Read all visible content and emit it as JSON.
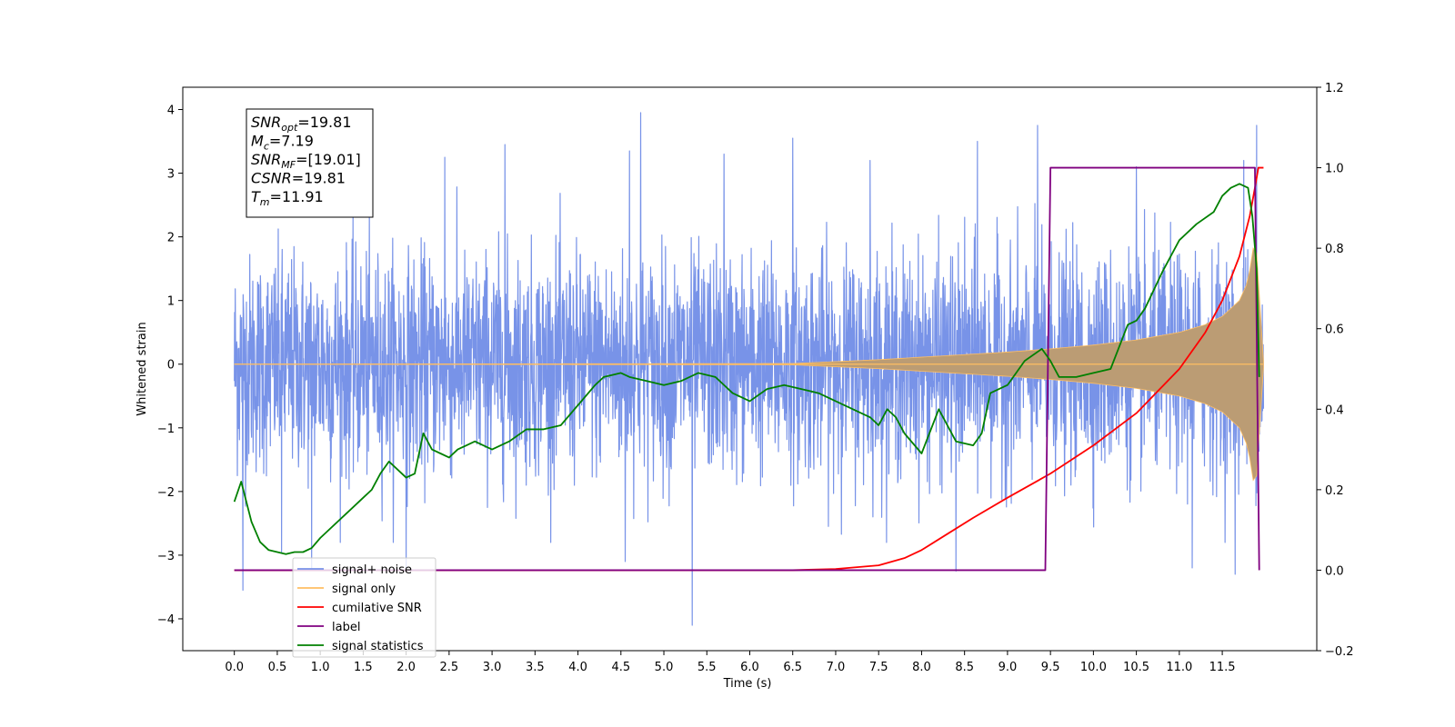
{
  "chart_data": {
    "type": "line",
    "title": "",
    "xlabel": "Time (s)",
    "ylabel": "Whitened strain",
    "xlim": [
      -0.6,
      12.6
    ],
    "ylim": [
      -4.5,
      4.35
    ],
    "y2lim": [
      -0.2,
      1.2
    ],
    "xticks": [
      0.0,
      0.5,
      1.0,
      1.5,
      2.0,
      2.5,
      3.0,
      3.5,
      4.0,
      4.5,
      5.0,
      5.5,
      6.0,
      6.5,
      7.0,
      7.5,
      8.0,
      8.5,
      9.0,
      9.5,
      10.0,
      10.5,
      11.0,
      11.5
    ],
    "xtick_labels": [
      "0.0",
      "0.5",
      "1.0",
      "1.5",
      "2.0",
      "2.5",
      "3.0",
      "3.5",
      "4.0",
      "4.5",
      "5.0",
      "5.5",
      "6.0",
      "6.5",
      "7.0",
      "7.5",
      "8.0",
      "8.5",
      "9.0",
      "9.5",
      "10.0",
      "10.5",
      "11.0",
      "11.5"
    ],
    "yticks": [
      -4,
      -3,
      -2,
      -1,
      0,
      1,
      2,
      3,
      4
    ],
    "ytick_labels": [
      "−4",
      "−3",
      "−2",
      "−1",
      "0",
      "1",
      "2",
      "3",
      "4"
    ],
    "y2ticks": [
      -0.2,
      0.0,
      0.2,
      0.4,
      0.6,
      0.8,
      1.0,
      1.2
    ],
    "y2tick_labels": [
      "−0.2",
      "0.0",
      "0.2",
      "0.4",
      "0.6",
      "0.8",
      "1.0",
      "1.2"
    ],
    "grid": false,
    "legend_position": "lower-left",
    "info_box": {
      "lines": [
        {
          "base": "SNR",
          "sub": "opt",
          "value": "=19.81"
        },
        {
          "base": "M",
          "sub": "c",
          "value": "=7.19"
        },
        {
          "base": "SNR",
          "sub": "MF",
          "value": "=[19.01]"
        },
        {
          "base": "CSNR",
          "sub": "",
          "value": "=19.81"
        },
        {
          "base": "T",
          "sub": "m",
          "value": "=11.91"
        }
      ]
    },
    "series": [
      {
        "name": "signal+ noise",
        "axis": "left",
        "color": "#7893e8",
        "kind": "noise",
        "x_range": [
          0.0,
          11.98
        ],
        "noise_std": 0.85,
        "spikes": [
          {
            "x": 0.1,
            "y": -3.55
          },
          {
            "x": 0.55,
            "y": -2.95
          },
          {
            "x": 0.9,
            "y": -3.2
          },
          {
            "x": 2.0,
            "y": -3.2
          },
          {
            "x": 2.45,
            "y": 3.25
          },
          {
            "x": 3.15,
            "y": 3.45
          },
          {
            "x": 4.6,
            "y": 3.35
          },
          {
            "x": 4.73,
            "y": 3.95
          },
          {
            "x": 4.55,
            "y": -3.1
          },
          {
            "x": 5.33,
            "y": -4.1
          },
          {
            "x": 5.7,
            "y": 3.3
          },
          {
            "x": 6.5,
            "y": 3.55
          },
          {
            "x": 7.4,
            "y": 3.2
          },
          {
            "x": 8.4,
            "y": -3.25
          },
          {
            "x": 8.65,
            "y": 3.5
          },
          {
            "x": 9.35,
            "y": 3.75
          },
          {
            "x": 10.5,
            "y": 3.1
          },
          {
            "x": 11.15,
            "y": -3.2
          },
          {
            "x": 11.65,
            "y": -3.3
          },
          {
            "x": 11.75,
            "y": 3.2
          },
          {
            "x": 11.9,
            "y": 3.75
          }
        ]
      },
      {
        "name": "signal only",
        "axis": "left",
        "color": "#ffbe62",
        "fill_color": "#bb9c74",
        "kind": "chirp_envelope",
        "x": [
          0.0,
          6.5,
          7.0,
          7.5,
          8.0,
          8.5,
          9.0,
          9.5,
          10.0,
          10.5,
          11.0,
          11.3,
          11.5,
          11.7,
          11.8,
          11.88,
          11.92,
          11.95,
          11.98
        ],
        "amplitude": [
          0.0,
          0.01,
          0.04,
          0.07,
          0.11,
          0.15,
          0.19,
          0.24,
          0.3,
          0.38,
          0.5,
          0.62,
          0.75,
          1.0,
          1.3,
          2.0,
          1.5,
          0.6,
          0.05
        ]
      },
      {
        "name": "cumilative SNR",
        "axis": "right",
        "color": "#ff0000",
        "x": [
          0.0,
          6.5,
          7.0,
          7.5,
          7.8,
          8.0,
          8.3,
          8.6,
          9.0,
          9.5,
          10.0,
          10.5,
          11.0,
          11.3,
          11.5,
          11.7,
          11.82,
          11.88,
          11.92,
          11.98
        ],
        "values": [
          0.0,
          0.0,
          0.003,
          0.012,
          0.03,
          0.05,
          0.09,
          0.13,
          0.18,
          0.24,
          0.31,
          0.39,
          0.5,
          0.59,
          0.67,
          0.78,
          0.88,
          0.95,
          1.0,
          1.0
        ]
      },
      {
        "name": "label",
        "axis": "right",
        "color": "#800080",
        "x": [
          0.0,
          9.44,
          9.5,
          11.88,
          11.93
        ],
        "values": [
          0.0,
          0.0,
          1.0,
          1.0,
          0.0
        ]
      },
      {
        "name": "signal statistics",
        "axis": "right",
        "color": "#008000",
        "x": [
          0.0,
          0.08,
          0.2,
          0.3,
          0.4,
          0.5,
          0.6,
          0.7,
          0.8,
          0.9,
          1.0,
          1.1,
          1.3,
          1.5,
          1.6,
          1.7,
          1.8,
          1.9,
          2.0,
          2.1,
          2.2,
          2.3,
          2.4,
          2.5,
          2.6,
          2.7,
          2.8,
          2.9,
          3.0,
          3.2,
          3.4,
          3.6,
          3.8,
          4.0,
          4.2,
          4.3,
          4.5,
          4.6,
          4.8,
          5.0,
          5.2,
          5.4,
          5.6,
          5.8,
          6.0,
          6.2,
          6.4,
          6.6,
          6.8,
          7.0,
          7.2,
          7.4,
          7.5,
          7.6,
          7.7,
          7.8,
          8.0,
          8.2,
          8.4,
          8.6,
          8.7,
          8.8,
          9.0,
          9.2,
          9.4,
          9.5,
          9.6,
          9.8,
          10.0,
          10.2,
          10.4,
          10.5,
          10.6,
          10.8,
          11.0,
          11.2,
          11.4,
          11.5,
          11.6,
          11.7,
          11.8,
          11.85,
          11.9,
          11.93
        ],
        "values": [
          0.17,
          0.22,
          0.12,
          0.07,
          0.05,
          0.045,
          0.04,
          0.045,
          0.045,
          0.055,
          0.08,
          0.1,
          0.14,
          0.18,
          0.2,
          0.24,
          0.27,
          0.25,
          0.23,
          0.24,
          0.34,
          0.3,
          0.29,
          0.28,
          0.3,
          0.31,
          0.32,
          0.31,
          0.3,
          0.32,
          0.35,
          0.35,
          0.36,
          0.41,
          0.46,
          0.48,
          0.49,
          0.48,
          0.47,
          0.46,
          0.47,
          0.49,
          0.48,
          0.44,
          0.42,
          0.45,
          0.46,
          0.45,
          0.44,
          0.42,
          0.4,
          0.38,
          0.36,
          0.4,
          0.38,
          0.34,
          0.29,
          0.4,
          0.32,
          0.31,
          0.34,
          0.44,
          0.46,
          0.52,
          0.55,
          0.52,
          0.48,
          0.48,
          0.49,
          0.5,
          0.61,
          0.62,
          0.65,
          0.74,
          0.82,
          0.86,
          0.89,
          0.93,
          0.95,
          0.96,
          0.95,
          0.88,
          0.75,
          0.48
        ]
      }
    ]
  }
}
